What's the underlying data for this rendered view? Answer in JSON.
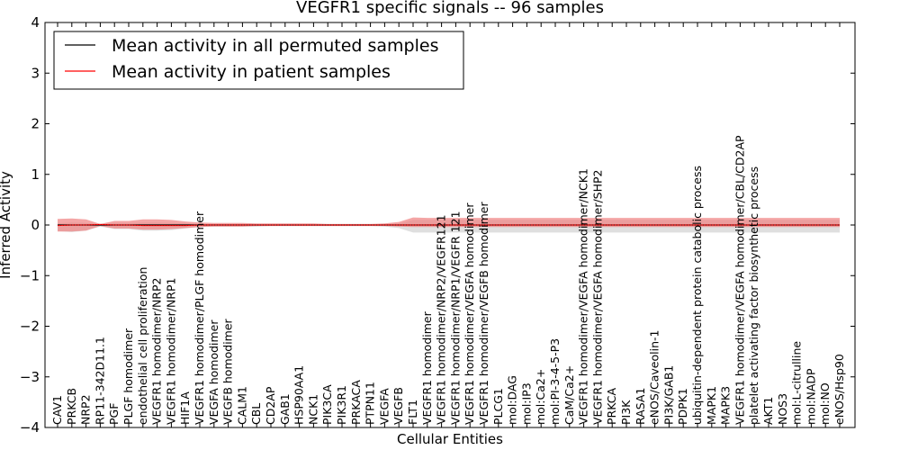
{
  "chart_data": {
    "type": "line",
    "title": "VEGFR1 specific signals -- 96 samples",
    "xlabel": "Cellular Entities",
    "ylabel": "Inferred Activity",
    "ylim": [
      -4,
      4
    ],
    "yticks": [
      "−4",
      "−3",
      "−2",
      "−1",
      "0",
      "1",
      "2",
      "3",
      "4"
    ],
    "grid": false,
    "legend_position": "top-left",
    "categories": [
      "CAV1",
      "PRKCB",
      "NRP2",
      "RP11-342D11.1",
      "PGF",
      "PLGF homodimer",
      "endothelial cell proliferation",
      "VEGFR1 homodimer/NRP2",
      "VEGFR1 homodimer/NRP1",
      "HIF1A",
      "VEGFR1 homodimer/PLGF homodimer",
      "VEGFA homodimer",
      "VEGFB homodimer",
      "CALM1",
      "CBL",
      "CD2AP",
      "GAB1",
      "HSP90AA1",
      "NCK1",
      "PIK3CA",
      "PIK3R1",
      "PRKACA",
      "PTPN11",
      "VEGFA",
      "VEGFB",
      "FLT1",
      "VEGFR1 homodimer",
      "VEGFR1 homodimer/NRP2/VEGFR121",
      "VEGFR1 homodimer/NRP1/VEGFR 121",
      "VEGFR1 homodimer/VEGFA homodimer",
      "VEGFR1 homodimer/VEGFB homodimer",
      "PLCG1",
      "mol:DAG",
      "mol:IP3",
      "mol:Ca2+",
      "mol:PI-3-4-5-P3",
      "CaM/Ca2+",
      "VEGFR1 homodimer/VEGFA homodimer/NCK1",
      "VEGFR1 homodimer/VEGFA homodimer/SHP2",
      "PRKCA",
      "PI3K",
      "RASA1",
      "eNOS/Caveolin-1",
      "PI3K/GAB1",
      "PDPK1",
      "ubiquitin-dependent protein catabolic process",
      "MAPK1",
      "MAPK3",
      "VEGFR1 homodimer/VEGFA homodimer/CBL/CD2AP",
      "platelet activating factor biosynthetic process",
      "AKT1",
      "NOS3",
      "mol:L-citrulline",
      "mol:NADP",
      "mol:NO",
      "eNOS/Hsp90"
    ],
    "series": [
      {
        "name": "Mean activity in all permuted samples",
        "color": "#000000",
        "values": [
          0,
          0,
          0,
          0,
          0,
          0,
          0,
          0,
          0,
          0,
          0,
          0,
          0,
          0,
          0,
          0,
          0,
          0,
          0,
          0,
          0,
          0,
          0,
          0,
          0,
          0,
          0,
          0,
          0,
          0,
          0,
          0,
          0,
          0,
          0,
          0,
          0,
          0,
          0,
          0,
          0,
          0,
          0,
          0,
          0,
          0,
          0,
          0,
          0,
          0,
          0,
          0,
          0,
          0,
          0,
          0
        ]
      },
      {
        "name": "Mean activity in patient samples",
        "color": "#ff0000",
        "band_color": "#f08080",
        "values": [
          -0.01,
          0.0,
          0.0,
          0.01,
          0.0,
          0.0,
          -0.01,
          -0.01,
          -0.01,
          -0.01,
          0.0,
          0.0,
          0.0,
          0.0,
          0.0,
          0.0,
          0.0,
          0.0,
          0.0,
          0.0,
          0.0,
          0.0,
          0.0,
          0.0,
          0.0,
          0.0,
          0.0,
          0.0,
          0.0,
          0.0,
          0.0,
          0.0,
          0.0,
          0.0,
          0.0,
          0.0,
          0.0,
          0.0,
          0.0,
          0.0,
          0.0,
          0.0,
          0.0,
          0.0,
          0.0,
          0.0,
          0.0,
          0.0,
          0.0,
          0.0,
          0.0,
          0.0,
          0.0,
          0.0,
          0.0,
          0.0
        ],
        "upper": [
          0.12,
          0.13,
          0.11,
          0.02,
          0.08,
          0.08,
          0.11,
          0.11,
          0.1,
          0.07,
          0.05,
          0.04,
          0.04,
          0.04,
          0.03,
          0.03,
          0.03,
          0.03,
          0.03,
          0.02,
          0.02,
          0.02,
          0.02,
          0.03,
          0.06,
          0.15,
          0.14,
          0.14,
          0.14,
          0.14,
          0.14,
          0.14,
          0.14,
          0.14,
          0.14,
          0.14,
          0.14,
          0.14,
          0.14,
          0.14,
          0.14,
          0.14,
          0.14,
          0.14,
          0.14,
          0.14,
          0.14,
          0.14,
          0.14,
          0.14,
          0.14,
          0.14,
          0.14,
          0.14,
          0.14,
          0.14
        ],
        "lower": [
          -0.13,
          -0.13,
          -0.11,
          -0.02,
          -0.07,
          -0.07,
          -0.09,
          -0.09,
          -0.08,
          -0.06,
          -0.04,
          -0.03,
          -0.03,
          -0.03,
          -0.02,
          -0.02,
          -0.02,
          -0.02,
          -0.02,
          -0.02,
          -0.02,
          -0.02,
          -0.02,
          -0.02,
          -0.03,
          -0.04,
          -0.04,
          -0.04,
          -0.04,
          -0.04,
          -0.04,
          -0.04,
          -0.04,
          -0.04,
          -0.04,
          -0.04,
          -0.04,
          -0.04,
          -0.04,
          -0.04,
          -0.04,
          -0.04,
          -0.04,
          -0.04,
          -0.04,
          -0.04,
          -0.04,
          -0.04,
          -0.04,
          -0.04,
          -0.04,
          -0.04,
          -0.04,
          -0.04,
          -0.04,
          -0.04
        ]
      }
    ],
    "permuted_band": {
      "color": "#c0c0c0",
      "upper": [
        0.03,
        0.05,
        0.04,
        0.02,
        0.04,
        0.04,
        0.05,
        0.05,
        0.04,
        0.03,
        0.02,
        0.02,
        0.02,
        0.02,
        0.02,
        0.02,
        0.02,
        0.02,
        0.02,
        0.02,
        0.02,
        0.02,
        0.02,
        0.02,
        0.03,
        0.1,
        0.1,
        0.1,
        0.1,
        0.1,
        0.1,
        0.1,
        0.1,
        0.1,
        0.1,
        0.1,
        0.1,
        0.1,
        0.1,
        0.1,
        0.1,
        0.1,
        0.1,
        0.1,
        0.1,
        0.1,
        0.1,
        0.1,
        0.1,
        0.1,
        0.1,
        0.1,
        0.1,
        0.1,
        0.1,
        0.1
      ],
      "lower": [
        -0.12,
        -0.14,
        -0.11,
        -0.03,
        -0.08,
        -0.08,
        -0.11,
        -0.11,
        -0.1,
        -0.07,
        -0.04,
        -0.03,
        -0.03,
        -0.03,
        -0.03,
        -0.02,
        -0.02,
        -0.02,
        -0.02,
        -0.02,
        -0.02,
        -0.02,
        -0.02,
        -0.03,
        -0.06,
        -0.15,
        -0.15,
        -0.15,
        -0.15,
        -0.15,
        -0.15,
        -0.15,
        -0.15,
        -0.15,
        -0.15,
        -0.15,
        -0.15,
        -0.15,
        -0.15,
        -0.15,
        -0.15,
        -0.15,
        -0.15,
        -0.15,
        -0.15,
        -0.15,
        -0.15,
        -0.15,
        -0.15,
        -0.15,
        -0.15,
        -0.15,
        -0.15,
        -0.15,
        -0.15,
        -0.15
      ]
    }
  }
}
